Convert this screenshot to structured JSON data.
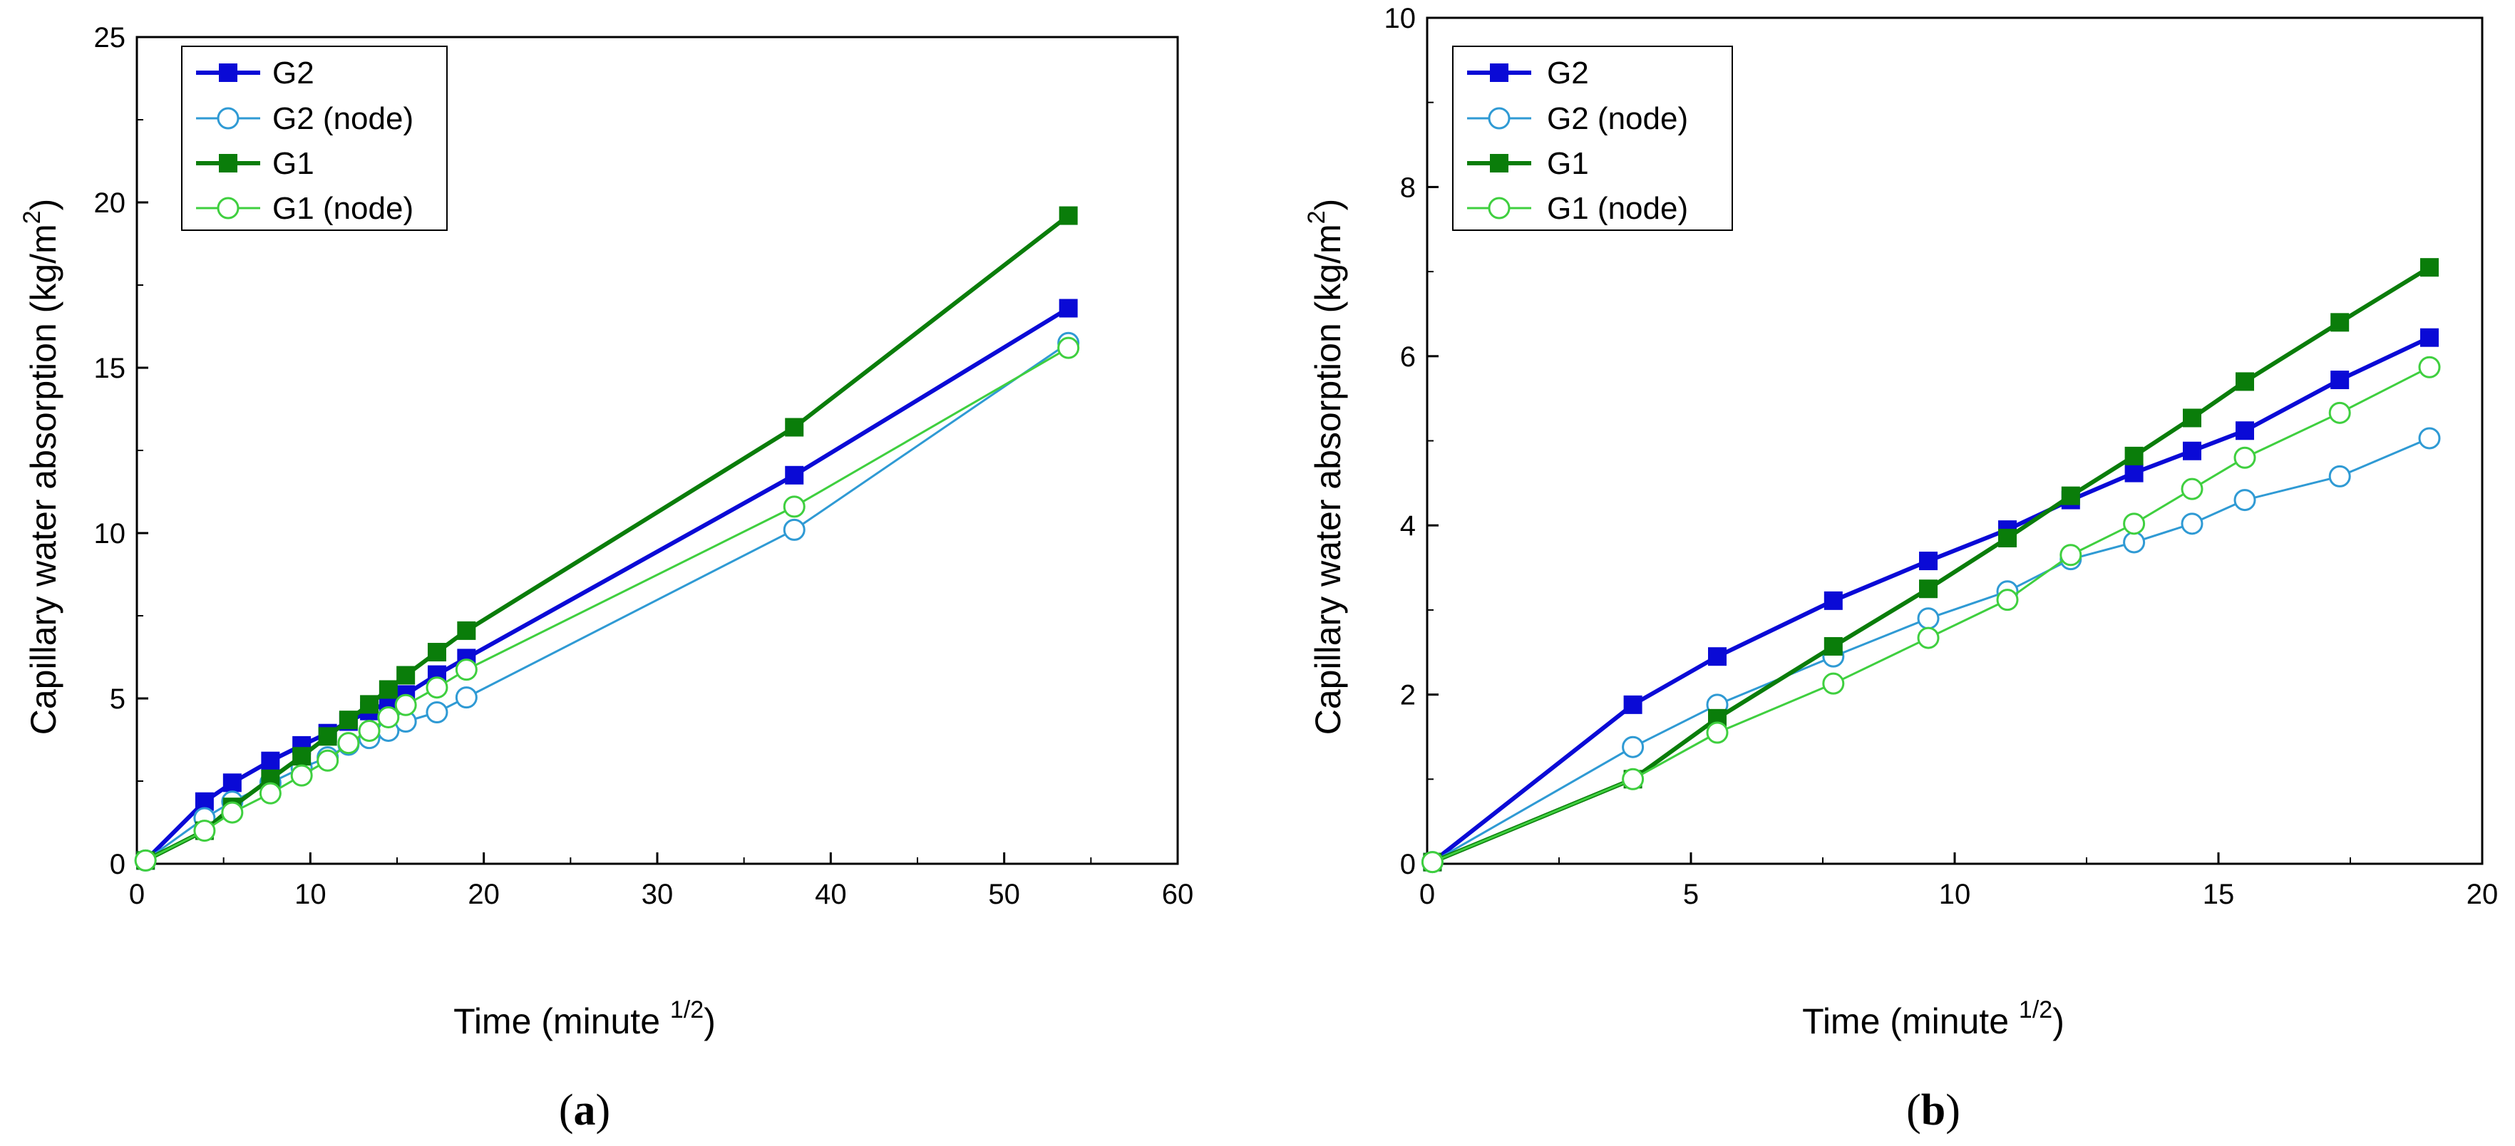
{
  "colors": {
    "g2": "#0a0ad6",
    "g2_node": "#2f9ad4",
    "g1": "#0a7d0a",
    "g1_node": "#3fcf3f"
  },
  "chart_data": [
    {
      "type": "line",
      "panel_label_open": "(",
      "panel_label_letter": "a",
      "panel_label_close": ")",
      "xlabel": "Time (minute",
      "xlabel_sup": "1/2",
      "xlabel_close": ")",
      "ylabel": "Capillary water absorption (kg/m",
      "ylabel_sup": "2",
      "ylabel_close": ")",
      "xlim": [
        0,
        60
      ],
      "ylim": [
        0,
        25
      ],
      "xticks": [
        "0",
        "10",
        "20",
        "30",
        "40",
        "50",
        "60"
      ],
      "yticks": [
        "0",
        "5",
        "10",
        "15",
        "20",
        "25"
      ],
      "legend_position": "top-left",
      "series": [
        {
          "name": "G2",
          "marker": "square",
          "filled": true,
          "color_key": "g2",
          "x": [
            0.5,
            3.9,
            5.5,
            7.7,
            9.5,
            11.0,
            12.2,
            13.4,
            14.5,
            15.5,
            17.3,
            19.0,
            37.9,
            53.7
          ],
          "y": [
            0.1,
            1.88,
            2.45,
            3.11,
            3.58,
            3.95,
            4.3,
            4.62,
            4.88,
            5.12,
            5.72,
            6.22,
            11.75,
            16.8
          ]
        },
        {
          "name": "G2 (node)",
          "marker": "circle",
          "filled": false,
          "color_key": "g2_node",
          "x": [
            0.5,
            3.9,
            5.5,
            7.7,
            9.5,
            11.0,
            12.2,
            13.4,
            14.5,
            15.5,
            17.3,
            19.0,
            37.9,
            53.7
          ],
          "y": [
            0.1,
            1.38,
            1.88,
            2.45,
            2.9,
            3.22,
            3.6,
            3.8,
            4.02,
            4.3,
            4.58,
            5.03,
            10.1,
            15.75
          ]
        },
        {
          "name": "G1",
          "marker": "square",
          "filled": true,
          "color_key": "g1",
          "x": [
            0.5,
            3.9,
            5.5,
            7.7,
            9.5,
            11.0,
            12.2,
            13.4,
            14.5,
            15.5,
            17.3,
            19.0,
            37.9,
            53.7
          ],
          "y": [
            0.1,
            1.0,
            1.72,
            2.57,
            3.25,
            3.85,
            4.35,
            4.82,
            5.27,
            5.7,
            6.4,
            7.05,
            13.2,
            19.6
          ]
        },
        {
          "name": "G1 (node)",
          "marker": "circle",
          "filled": false,
          "color_key": "g1_node",
          "x": [
            0.5,
            3.9,
            5.5,
            7.7,
            9.5,
            11.0,
            12.2,
            13.4,
            14.5,
            15.5,
            17.3,
            19.0,
            37.9,
            53.7
          ],
          "y": [
            0.1,
            1.0,
            1.55,
            2.13,
            2.67,
            3.12,
            3.65,
            4.02,
            4.43,
            4.8,
            5.33,
            5.87,
            10.8,
            15.6
          ]
        }
      ]
    },
    {
      "type": "line",
      "panel_label_open": "(",
      "panel_label_letter": "b",
      "panel_label_close": ")",
      "xlabel": "Time (minute",
      "xlabel_sup": "1/2",
      "xlabel_close": ")",
      "ylabel": "Capillary water absorption (kg/m",
      "ylabel_sup": "2",
      "ylabel_close": ")",
      "xlim": [
        0,
        20
      ],
      "ylim": [
        0,
        10
      ],
      "xticks": [
        "0",
        "5",
        "10",
        "15",
        "20"
      ],
      "yticks": [
        "0",
        "2",
        "4",
        "6",
        "8",
        "10"
      ],
      "legend_position": "top-left",
      "series": [
        {
          "name": "G2",
          "marker": "square",
          "filled": true,
          "color_key": "g2",
          "x": [
            0.1,
            3.9,
            5.5,
            7.7,
            9.5,
            11.0,
            12.2,
            13.4,
            14.5,
            15.5,
            17.3,
            19.0
          ],
          "y": [
            0.02,
            1.88,
            2.45,
            3.11,
            3.58,
            3.95,
            4.3,
            4.62,
            4.88,
            5.12,
            5.72,
            6.22
          ]
        },
        {
          "name": "G2 (node)",
          "marker": "circle",
          "filled": false,
          "color_key": "g2_node",
          "x": [
            0.1,
            3.9,
            5.5,
            7.7,
            9.5,
            11.0,
            12.2,
            13.4,
            14.5,
            15.5,
            17.3,
            19.0
          ],
          "y": [
            0.02,
            1.38,
            1.88,
            2.45,
            2.9,
            3.22,
            3.6,
            3.8,
            4.02,
            4.3,
            4.58,
            5.03
          ]
        },
        {
          "name": "G1",
          "marker": "square",
          "filled": true,
          "color_key": "g1",
          "x": [
            0.1,
            3.9,
            5.5,
            7.7,
            9.5,
            11.0,
            12.2,
            13.4,
            14.5,
            15.5,
            17.3,
            19.0
          ],
          "y": [
            0.02,
            1.0,
            1.72,
            2.57,
            3.25,
            3.85,
            4.35,
            4.82,
            5.27,
            5.7,
            6.4,
            7.05
          ]
        },
        {
          "name": "G1 (node)",
          "marker": "circle",
          "filled": false,
          "color_key": "g1_node",
          "x": [
            0.1,
            3.9,
            5.5,
            7.7,
            9.5,
            11.0,
            12.2,
            13.4,
            14.5,
            15.5,
            17.3,
            19.0
          ],
          "y": [
            0.02,
            1.0,
            1.55,
            2.13,
            2.67,
            3.12,
            3.65,
            4.02,
            4.43,
            4.8,
            5.33,
            5.87
          ]
        }
      ]
    }
  ]
}
